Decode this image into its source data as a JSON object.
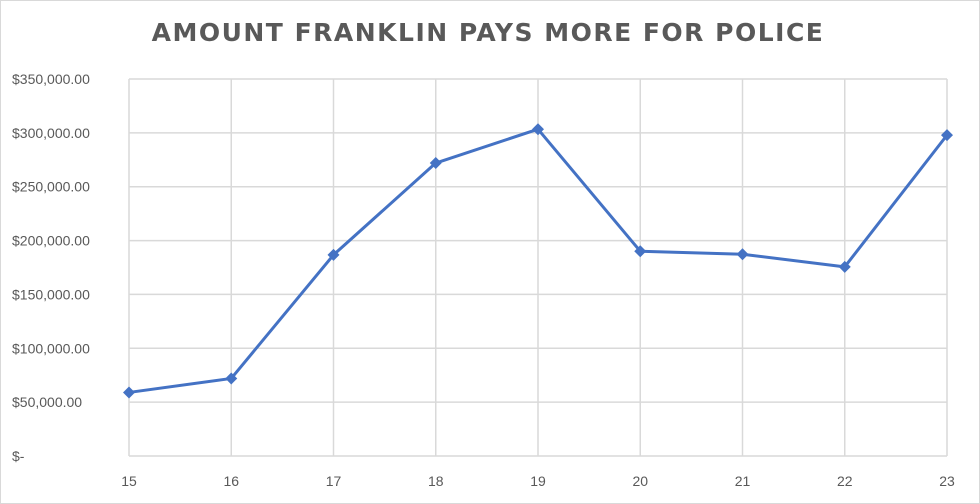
{
  "chart_data": {
    "type": "line",
    "title": "AMOUNT FRANKLIN PAYS MORE FOR POLICE",
    "xlabel": "",
    "ylabel": "",
    "categories": [
      "15",
      "16",
      "17",
      "18",
      "19",
      "20",
      "21",
      "22",
      "23"
    ],
    "series": [
      {
        "values": [
          59000,
          72000,
          186700,
          272000,
          303400,
          190100,
          187300,
          175600,
          297900
        ],
        "color": "#4472c4",
        "marker": "diamond"
      }
    ],
    "ylim": [
      0,
      350000
    ],
    "yticks": [
      0,
      50000,
      100000,
      150000,
      200000,
      250000,
      300000,
      350000
    ],
    "ytick_labels": [
      "$-",
      "$50,000.00",
      "$100,000.00",
      "$150,000.00",
      "$200,000.00",
      "$250,000.00",
      "$300,000.00",
      "$350,000.00"
    ],
    "grid": true,
    "grid_color": "#d9d9d9",
    "legend": "none"
  }
}
